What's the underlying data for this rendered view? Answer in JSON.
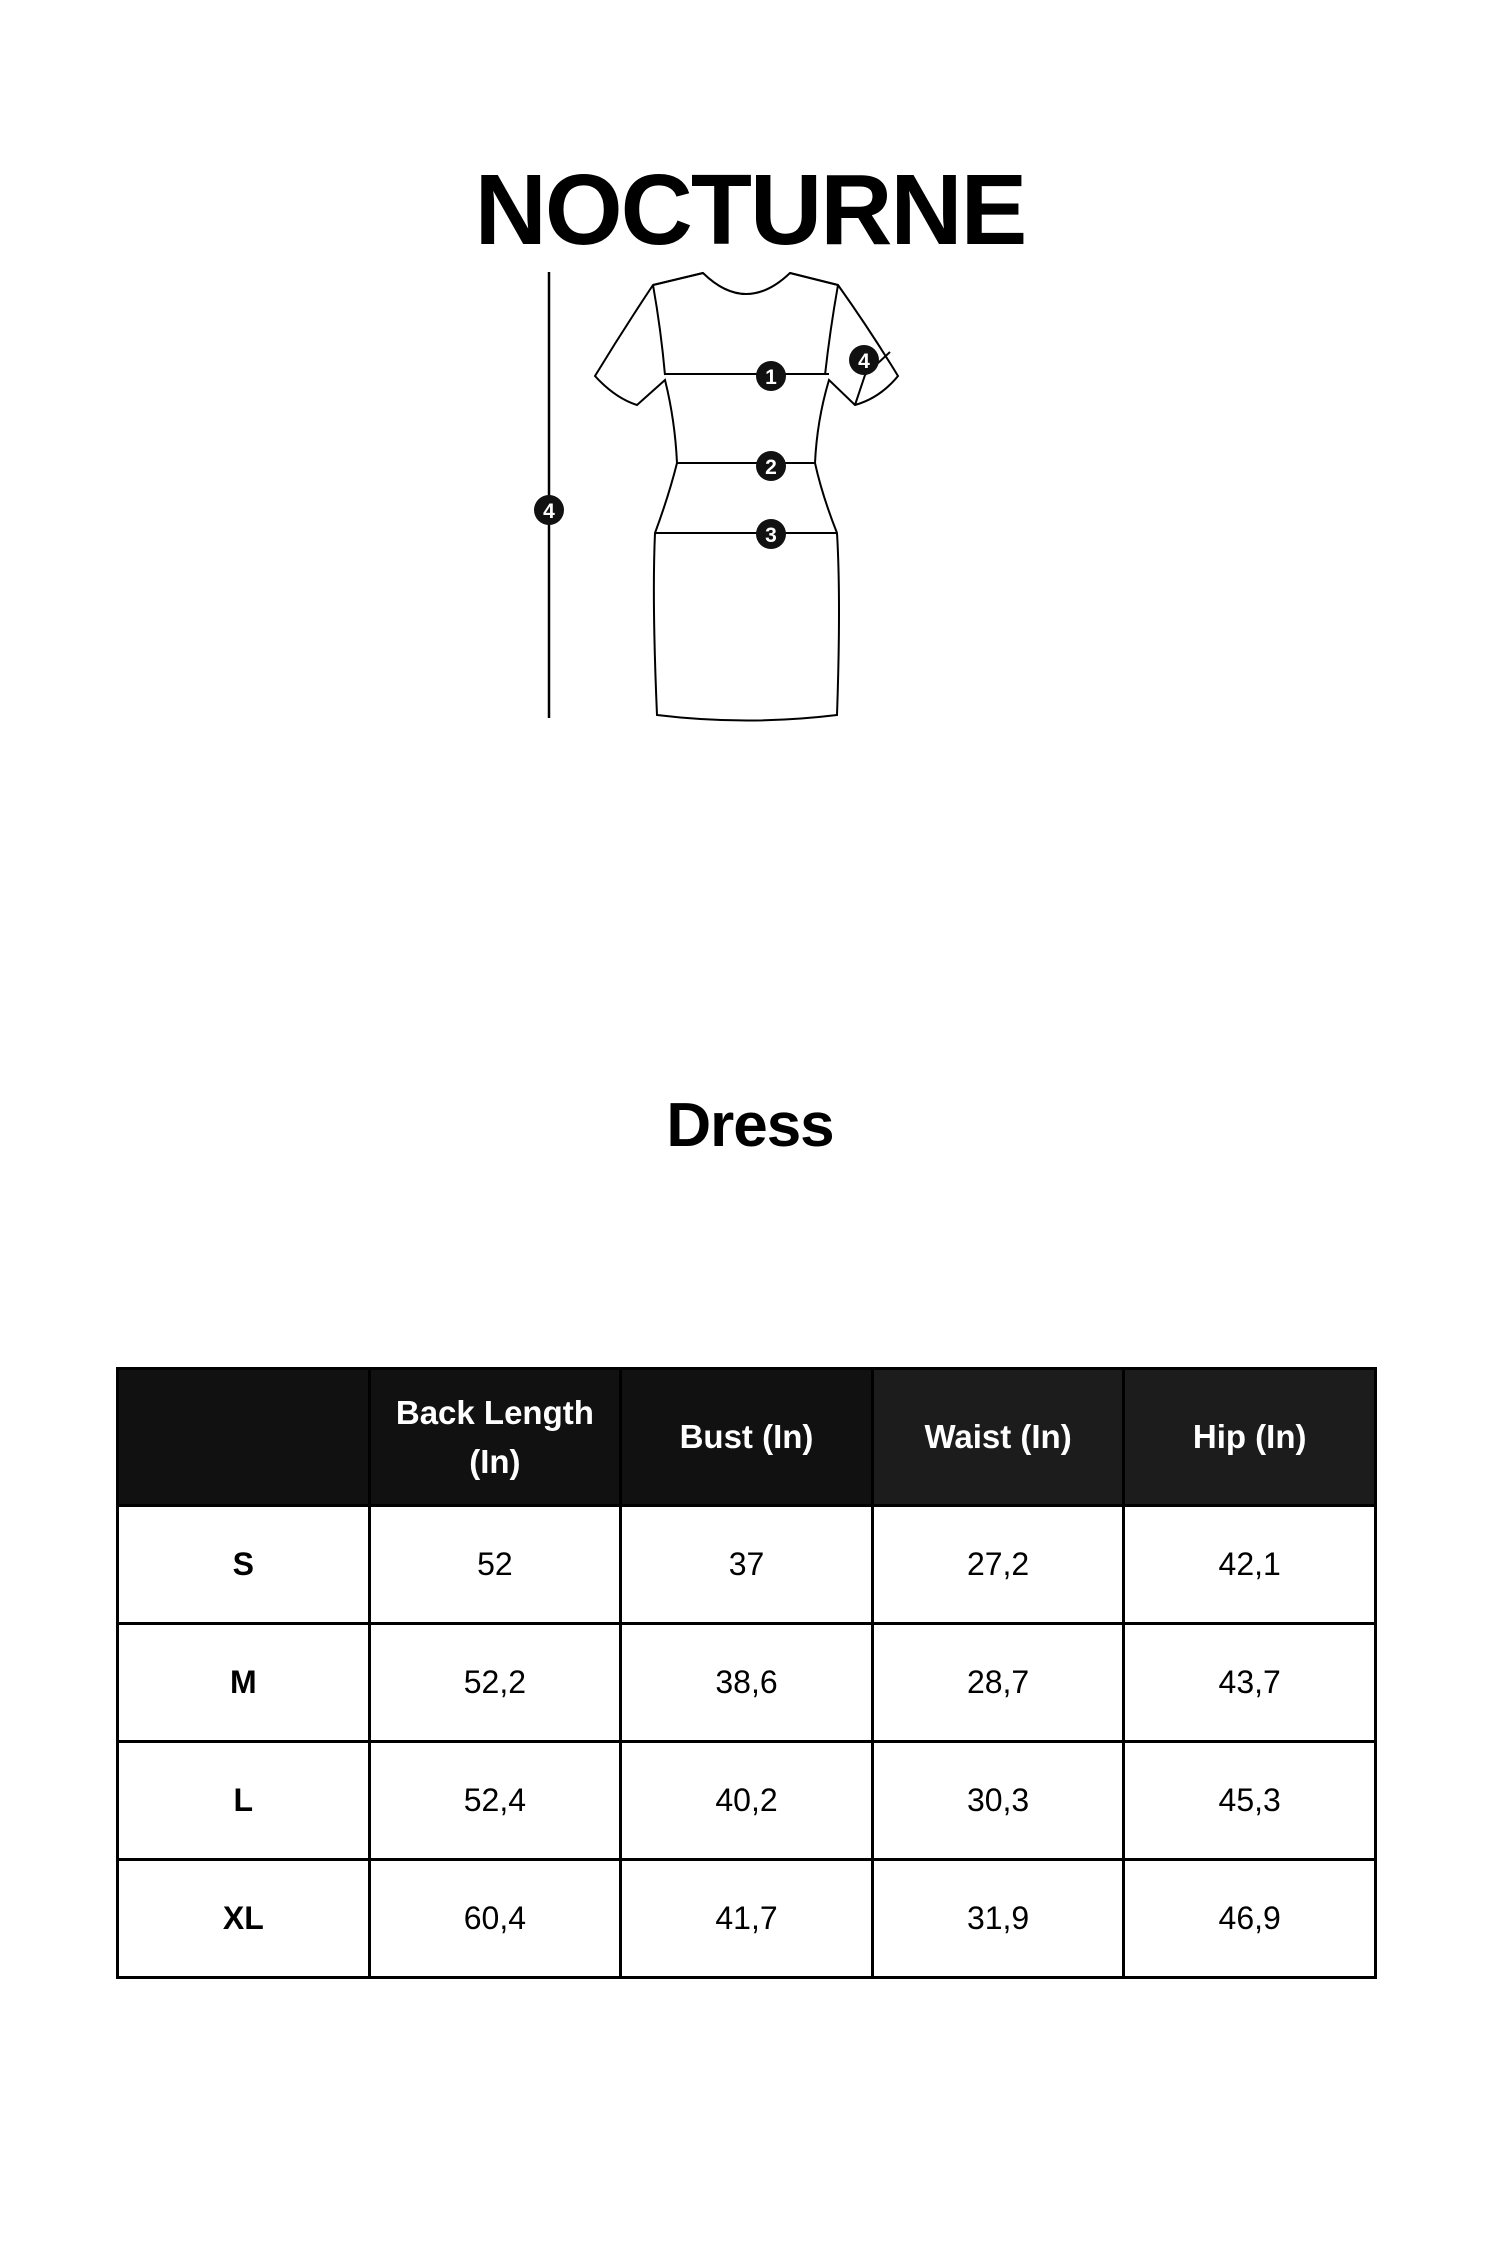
{
  "brand": "NOCTURNE",
  "garment": "Dress",
  "diagram": {
    "markers": [
      "1",
      "2",
      "3",
      "4",
      "4"
    ]
  },
  "table": {
    "headers": [
      "",
      "Back Length (In)",
      "Bust (In)",
      "Waist (In)",
      "Hip (In)"
    ],
    "rows": [
      [
        "S",
        "52",
        "37",
        "27,2",
        "42,1"
      ],
      [
        "M",
        "52,2",
        "38,6",
        "28,7",
        "43,7"
      ],
      [
        "L",
        "52,4",
        "40,2",
        "30,3",
        "45,3"
      ],
      [
        "XL",
        "60,4",
        "41,7",
        "31,9",
        "46,9"
      ]
    ]
  },
  "colors": {
    "header_bg": "#111111",
    "text": "#000000"
  }
}
